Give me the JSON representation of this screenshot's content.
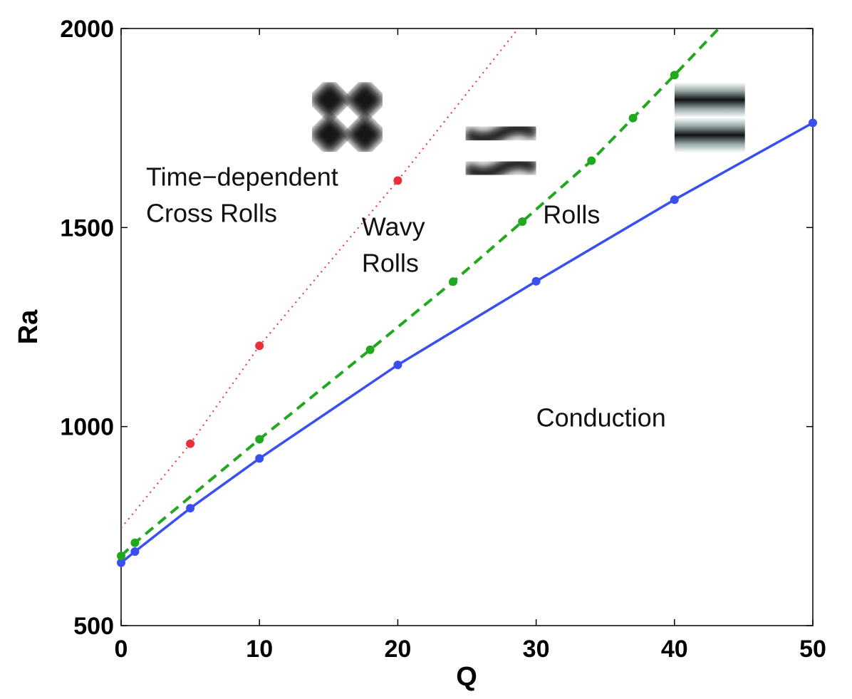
{
  "chart_data": {
    "type": "line",
    "xlabel": "Q",
    "ylabel": "Ra",
    "xlim": [
      0,
      50
    ],
    "ylim": [
      500,
      2000
    ],
    "xticks": [
      "0",
      "10",
      "20",
      "30",
      "40",
      "50"
    ],
    "yticks": [
      "500",
      "1000",
      "1500",
      "2000"
    ],
    "grid": false,
    "series": [
      {
        "line_style": "solid",
        "color": "#3a4ff2",
        "points": [
          [
            0,
            658
          ],
          [
            1,
            686
          ],
          [
            5,
            795
          ],
          [
            10,
            920
          ],
          [
            20,
            1155
          ],
          [
            30,
            1365
          ],
          [
            40,
            1570
          ],
          [
            50,
            1763
          ]
        ]
      },
      {
        "line_style": "dashed",
        "color": "#22a81f",
        "points": [
          [
            0,
            675
          ],
          [
            1,
            708
          ],
          [
            10,
            968
          ],
          [
            18,
            1193
          ],
          [
            24,
            1364
          ],
          [
            29,
            1515
          ],
          [
            34,
            1668
          ],
          [
            37,
            1775
          ],
          [
            40,
            1883
          ],
          [
            43.2,
            2000
          ]
        ]
      },
      {
        "line_style": "dotted",
        "color": "#e8303a",
        "points": [
          [
            0,
            745
          ],
          [
            5,
            957
          ],
          [
            10,
            1203
          ],
          [
            20,
            1618
          ],
          [
            28.7,
            2000
          ]
        ],
        "markers": [
          [
            5,
            957
          ],
          [
            10,
            1203
          ],
          [
            20,
            1618
          ]
        ]
      }
    ],
    "annotations": [
      {
        "lines": [
          "Time−dependent",
          "Cross Rolls"
        ],
        "x": 1.8,
        "y": 1605
      },
      {
        "lines": [
          "Wavy",
          "Rolls"
        ],
        "x": 17.4,
        "y": 1480
      },
      {
        "lines": [
          "Rolls"
        ],
        "x": 30.5,
        "y": 1510
      },
      {
        "lines": [
          "Conduction"
        ],
        "x": 30,
        "y": 1000
      }
    ],
    "pattern_insets": [
      {
        "name": "cross-rolls-pattern",
        "x": [
          13.8,
          18.9
        ],
        "y": [
          1690,
          1865
        ]
      },
      {
        "name": "wavy-rolls-pattern",
        "x": [
          24.9,
          30
        ],
        "y": [
          1600,
          1775
        ]
      },
      {
        "name": "rolls-pattern",
        "x": [
          40,
          45.1
        ],
        "y": [
          1688,
          1865
        ]
      }
    ]
  }
}
